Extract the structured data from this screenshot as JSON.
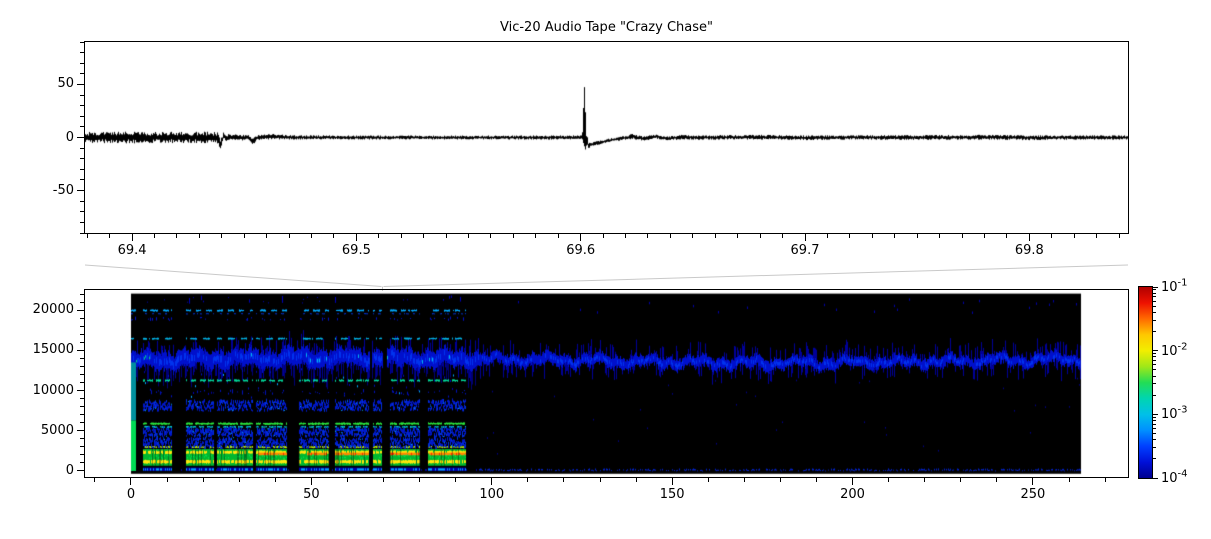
{
  "figure": {
    "title": "Vic-20 Audio Tape \"Crazy Chase\"",
    "background": "#ffffff",
    "text_color": "#000000",
    "connector_color": "#c9c9c9"
  },
  "chart_data": [
    {
      "type": "line",
      "name": "waveform",
      "description": "Audio amplitude waveform, zoomed view of tape around t = 69.6 s; noise burst until 69.44 s, quiet carrier, large transient spike at 69.60 s reaching about +61",
      "xlim": [
        69.379,
        69.844
      ],
      "ylim": [
        -90,
        90
      ],
      "xticks": [
        69.4,
        69.5,
        69.6,
        69.7,
        69.8
      ],
      "xtick_labels": [
        "69.4",
        "69.5",
        "69.6",
        "69.7",
        "69.8"
      ],
      "xminor_step": 0.01,
      "yticks": [
        50,
        0,
        -50
      ],
      "ytick_labels": [
        "50",
        "0",
        "-50"
      ],
      "yminor_step": 10,
      "line_color": "#000000",
      "spike": {
        "t": 69.601,
        "peak": 61,
        "trough": -11
      },
      "envelope": [
        [
          69.379,
          -5.5,
          5.5
        ],
        [
          69.438,
          -5.5,
          5.5
        ],
        [
          69.4393,
          -12,
          -2
        ],
        [
          69.4405,
          -3,
          5
        ],
        [
          69.442,
          -3.2,
          3.2
        ],
        [
          69.452,
          -2.6,
          2.6
        ],
        [
          69.4535,
          -8,
          -1
        ],
        [
          69.4555,
          -2.6,
          2.6
        ],
        [
          69.462,
          -2,
          3.6
        ],
        [
          69.47,
          -2,
          2.2
        ],
        [
          69.52,
          -1.9,
          1.9
        ],
        [
          69.56,
          -1.9,
          1.9
        ],
        [
          69.5995,
          -2,
          2
        ],
        [
          69.6008,
          -2,
          6
        ],
        [
          69.6013,
          -11,
          61
        ],
        [
          69.6022,
          -12,
          9
        ],
        [
          69.6032,
          -10,
          -4
        ],
        [
          69.607,
          -7.5,
          -3.5
        ],
        [
          69.612,
          -4.5,
          -1
        ],
        [
          69.617,
          -3,
          0.5
        ],
        [
          69.623,
          -1.5,
          3.5
        ],
        [
          69.628,
          -3.5,
          1
        ],
        [
          69.633,
          -1,
          3.2
        ],
        [
          69.638,
          -3,
          1
        ],
        [
          69.645,
          -2,
          3
        ],
        [
          69.652,
          -2.2,
          2.2
        ],
        [
          69.68,
          -2,
          2.6
        ],
        [
          69.7,
          -2.6,
          2
        ],
        [
          69.72,
          -2,
          2.2
        ],
        [
          69.75,
          -2.3,
          2.3
        ],
        [
          69.78,
          -2,
          2.6
        ],
        [
          69.8,
          -2.6,
          2
        ],
        [
          69.82,
          -2.1,
          2.1
        ],
        [
          69.844,
          -2,
          2
        ]
      ]
    },
    {
      "type": "heatmap",
      "name": "spectrogram",
      "description": "Spectrogram of full tape (0-263 s, 0-22050 Hz, jet colormap, log power 1e-4..1e-1). Program data with rich harmonic bands until ~96 s, then mostly silence with a persistent noisy blue band near 13.8 kHz",
      "xlim": [
        -12.75,
        276.35
      ],
      "ylim": [
        -750,
        22500
      ],
      "xticks": [
        0,
        50,
        100,
        150,
        200,
        250
      ],
      "xtick_labels": [
        "0",
        "50",
        "100",
        "150",
        "200",
        "250"
      ],
      "xminor_step": 10,
      "yticks": [
        0,
        5000,
        10000,
        15000,
        20000
      ],
      "ytick_labels": [
        "0",
        "5000",
        "10000",
        "15000",
        "20000"
      ],
      "yminor_step": 1000,
      "time_range": [
        0,
        263
      ],
      "freq_top": 22050,
      "phase_change_t": 96.3,
      "background": "#000000",
      "band": {
        "center_hz": 13750,
        "wobble_hz": 550,
        "color": "#0010cc"
      },
      "gaps": [
        [
          1.2,
          3.1
        ],
        [
          11.3,
          15.2
        ],
        [
          22.8,
          23.6
        ],
        [
          33.8,
          34.5
        ],
        [
          43.2,
          46.4
        ],
        [
          54.8,
          56.4
        ],
        [
          65.9,
          67.0
        ],
        [
          69.3,
          71.6
        ],
        [
          80.1,
          82.3
        ],
        [
          92.6,
          96.3
        ]
      ],
      "slits": [
        [
          66.1,
          66.6
        ],
        [
          69.8,
          70.9
        ]
      ],
      "orange_zones": [
        [
          35,
          43.2
        ],
        [
          48.6,
          54.2
        ],
        [
          56.4,
          65.9
        ],
        [
          71.6,
          80.1
        ],
        [
          82.6,
          92.6
        ]
      ],
      "lines": [
        {
          "f": 19950,
          "w": 120,
          "df": 2.1,
          "ph": 0.3,
          "th": -0.1,
          "color": "#00aaff"
        },
        {
          "f": 19550,
          "w": 70,
          "df": 3.3,
          "ph": 1.1,
          "th": 0.55,
          "color": "#0033cc"
        },
        {
          "f": 16450,
          "w": 110,
          "df": 1.8,
          "ph": 2.0,
          "th": -0.15,
          "color": "#00b4e8"
        },
        {
          "f": 11250,
          "w": 130,
          "df": 2.6,
          "ph": 0.9,
          "th": -0.35,
          "color": "#00d89a"
        },
        {
          "f": 5880,
          "w": 130,
          "df": 1.0,
          "ph": 0.0,
          "th": -0.95,
          "color": "#2ae83c"
        },
        {
          "f": 5480,
          "w": 100,
          "df": 2.9,
          "ph": 1.7,
          "th": -0.5,
          "color": "#00c8d8"
        },
        {
          "f": 2980,
          "w": 120,
          "df": 1.4,
          "ph": 0.5,
          "th": -0.85,
          "color": "#bce800"
        }
      ],
      "fuzz_bands": [
        [
          7350,
          8750
        ],
        [
          4150,
          5350
        ],
        [
          2750,
          4100
        ]
      ],
      "low_band": {
        "lo": 650,
        "hi": 2720,
        "base_color": "#00b830",
        "yellow_rows": [
          [
            950,
            1350
          ],
          [
            2150,
            2500
          ]
        ],
        "yellow_color": "#ffe60b",
        "orange_row": [
          1950,
          2280
        ],
        "orange_color": "#ff8800",
        "red_color": "#ff2a00"
      },
      "bottom_strip": {
        "lo": 0,
        "hi": 420,
        "color": "#0000aa",
        "dash_color": "#00aaff"
      },
      "colorbar": {
        "scale": "log",
        "min": "1e-4",
        "max": "1e-1",
        "colormap": "jet",
        "ticks": [
          {
            "base": "10",
            "exp": "-1"
          },
          {
            "base": "10",
            "exp": "-2"
          },
          {
            "base": "10",
            "exp": "-3"
          },
          {
            "base": "10",
            "exp": "-4"
          }
        ],
        "gradient": [
          "#b00000",
          "#ee1100",
          "#ff6a00",
          "#ffc800",
          "#f2ee00",
          "#a0e818",
          "#22dd55",
          "#00d5b0",
          "#00c0e8",
          "#0090ff",
          "#0040ff",
          "#0010d8",
          "#000090"
        ]
      }
    }
  ]
}
